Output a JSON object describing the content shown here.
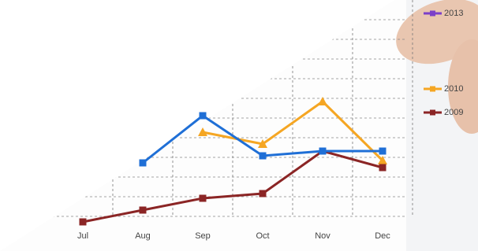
{
  "chart_data": {
    "type": "line",
    "categories": [
      "Jul",
      "Aug",
      "Sep",
      "Oct",
      "Nov",
      "Dec"
    ],
    "ylim": [
      0,
      100
    ],
    "grid": true,
    "series": [
      {
        "name": "2013",
        "color": "#7b3fc9",
        "values": [
          null,
          null,
          null,
          null,
          null,
          null
        ]
      },
      {
        "name": "2010",
        "color": "#f5a623",
        "values": [
          null,
          null,
          44,
          39,
          57,
          32
        ]
      },
      {
        "name": "2009",
        "color": "#8b2525",
        "values": [
          6,
          11,
          16,
          18,
          36,
          29
        ]
      },
      {
        "color": "#1f6fd6",
        "values": [
          null,
          31,
          51,
          34,
          36,
          36
        ]
      }
    ]
  }
}
